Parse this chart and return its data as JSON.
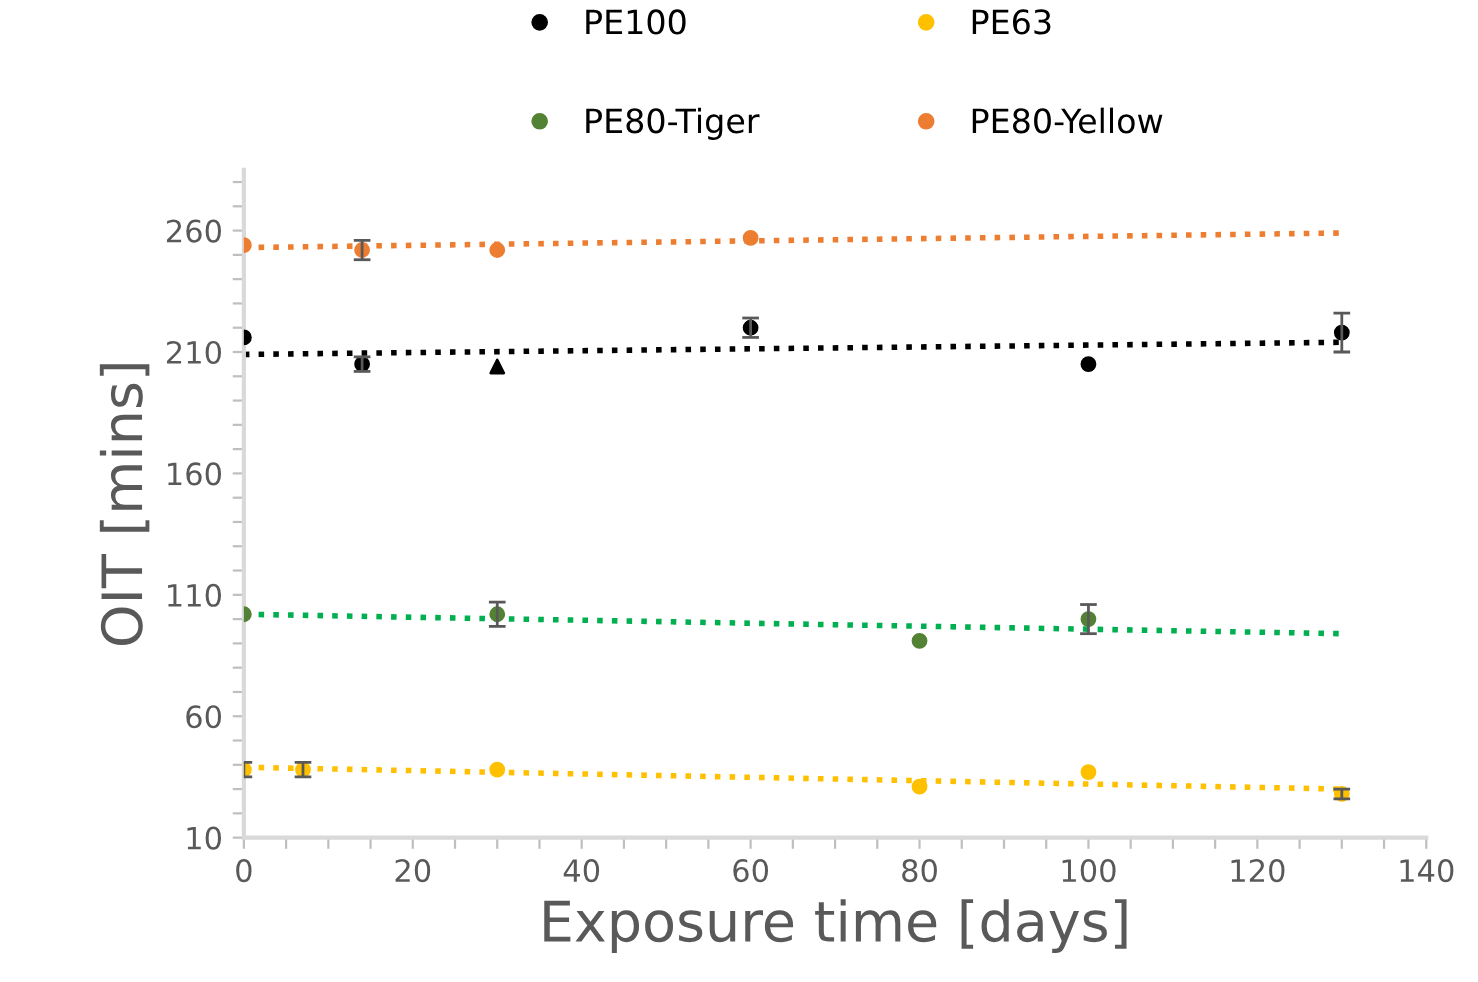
{
  "chart_data": {
    "type": "scatter",
    "xlabel": "Exposure time [days]",
    "ylabel": "OIT [mins]",
    "xlim": [
      0,
      140
    ],
    "ylim": [
      10,
      285
    ],
    "xticks": [
      0,
      {
        "value": 5,
        "label": null
      },
      {
        "value": 10,
        "label": null
      },
      {
        "value": 15,
        "label": null
      },
      20,
      {
        "value": 25,
        "label": null
      },
      {
        "value": 30,
        "label": null
      },
      {
        "value": 35,
        "label": null
      },
      40,
      {
        "value": 45,
        "label": null
      },
      {
        "value": 50,
        "label": null
      },
      {
        "value": 55,
        "label": null
      },
      60,
      {
        "value": 65,
        "label": null
      },
      {
        "value": 70,
        "label": null
      },
      {
        "value": 75,
        "label": null
      },
      80,
      {
        "value": 85,
        "label": null
      },
      {
        "value": 90,
        "label": null
      },
      {
        "value": 95,
        "label": null
      },
      100,
      {
        "value": 105,
        "label": null
      },
      {
        "value": 110,
        "label": null
      },
      {
        "value": 115,
        "label": null
      },
      120,
      {
        "value": 125,
        "label": null
      },
      {
        "value": 130,
        "label": null
      },
      {
        "value": 135,
        "label": null
      },
      140
    ],
    "yticks": [
      10,
      {
        "value": 20,
        "label": null
      },
      {
        "value": 30,
        "label": null
      },
      {
        "value": 40,
        "label": null
      },
      {
        "value": 50,
        "label": null
      },
      60,
      {
        "value": 70,
        "label": null
      },
      {
        "value": 80,
        "label": null
      },
      {
        "value": 90,
        "label": null
      },
      {
        "value": 100,
        "label": null
      },
      110,
      {
        "value": 120,
        "label": null
      },
      {
        "value": 130,
        "label": null
      },
      {
        "value": 140,
        "label": null
      },
      {
        "value": 150,
        "label": null
      },
      160,
      {
        "value": 170,
        "label": null
      },
      {
        "value": 180,
        "label": null
      },
      {
        "value": 190,
        "label": null
      },
      {
        "value": 200,
        "label": null
      },
      210,
      {
        "value": 220,
        "label": null
      },
      {
        "value": 230,
        "label": null
      },
      {
        "value": 240,
        "label": null
      },
      {
        "value": 250,
        "label": null
      },
      260,
      {
        "value": 270,
        "label": null
      },
      {
        "value": 280,
        "label": null
      }
    ],
    "grid": false,
    "legend": "top",
    "marker": "circle",
    "series": [
      {
        "name": "PE100",
        "color": "#000000",
        "x": [
          0,
          14,
          60,
          100,
          130
        ],
        "values": [
          216,
          205,
          220,
          205,
          218
        ],
        "errors": [
          null,
          3,
          4,
          null,
          8
        ]
      },
      {
        "color": "#000000",
        "marker": "triangle",
        "x": [
          30
        ],
        "values": [
          204
        ]
      },
      {
        "name": "PE63",
        "color": "#ffc000",
        "x": [
          0,
          7,
          30,
          80,
          100,
          130
        ],
        "values": [
          38,
          38,
          38,
          31,
          37,
          28
        ],
        "errors": [
          3,
          3,
          null,
          null,
          null,
          2
        ]
      },
      {
        "name": "PE80-Tiger",
        "color": "#548235",
        "x": [
          0,
          30,
          80,
          100
        ],
        "values": [
          102,
          102,
          91,
          100
        ],
        "errors": [
          null,
          5,
          null,
          6
        ]
      },
      {
        "name": "PE80-Yellow",
        "color": "#ed7d31",
        "x": [
          0,
          14,
          30,
          60
        ],
        "values": [
          254,
          252,
          252,
          257
        ],
        "errors": [
          null,
          4,
          null,
          null
        ]
      },
      {
        "type": "line",
        "color": "#000000",
        "line_style": "dotted",
        "marker": "none",
        "x": [
          0,
          130
        ],
        "values": [
          209,
          214
        ]
      },
      {
        "type": "line",
        "color": "#ffc000",
        "line_style": "dotted",
        "marker": "none",
        "x": [
          0,
          130
        ],
        "values": [
          39,
          30
        ]
      },
      {
        "type": "line",
        "color": "#00b050",
        "line_style": "dotted",
        "marker": "none",
        "x": [
          0,
          130
        ],
        "values": [
          102,
          94
        ]
      },
      {
        "type": "line",
        "color": "#ed7d31",
        "line_style": "dotted",
        "marker": "none",
        "x": [
          0,
          130
        ],
        "values": [
          253,
          259
        ]
      }
    ]
  }
}
